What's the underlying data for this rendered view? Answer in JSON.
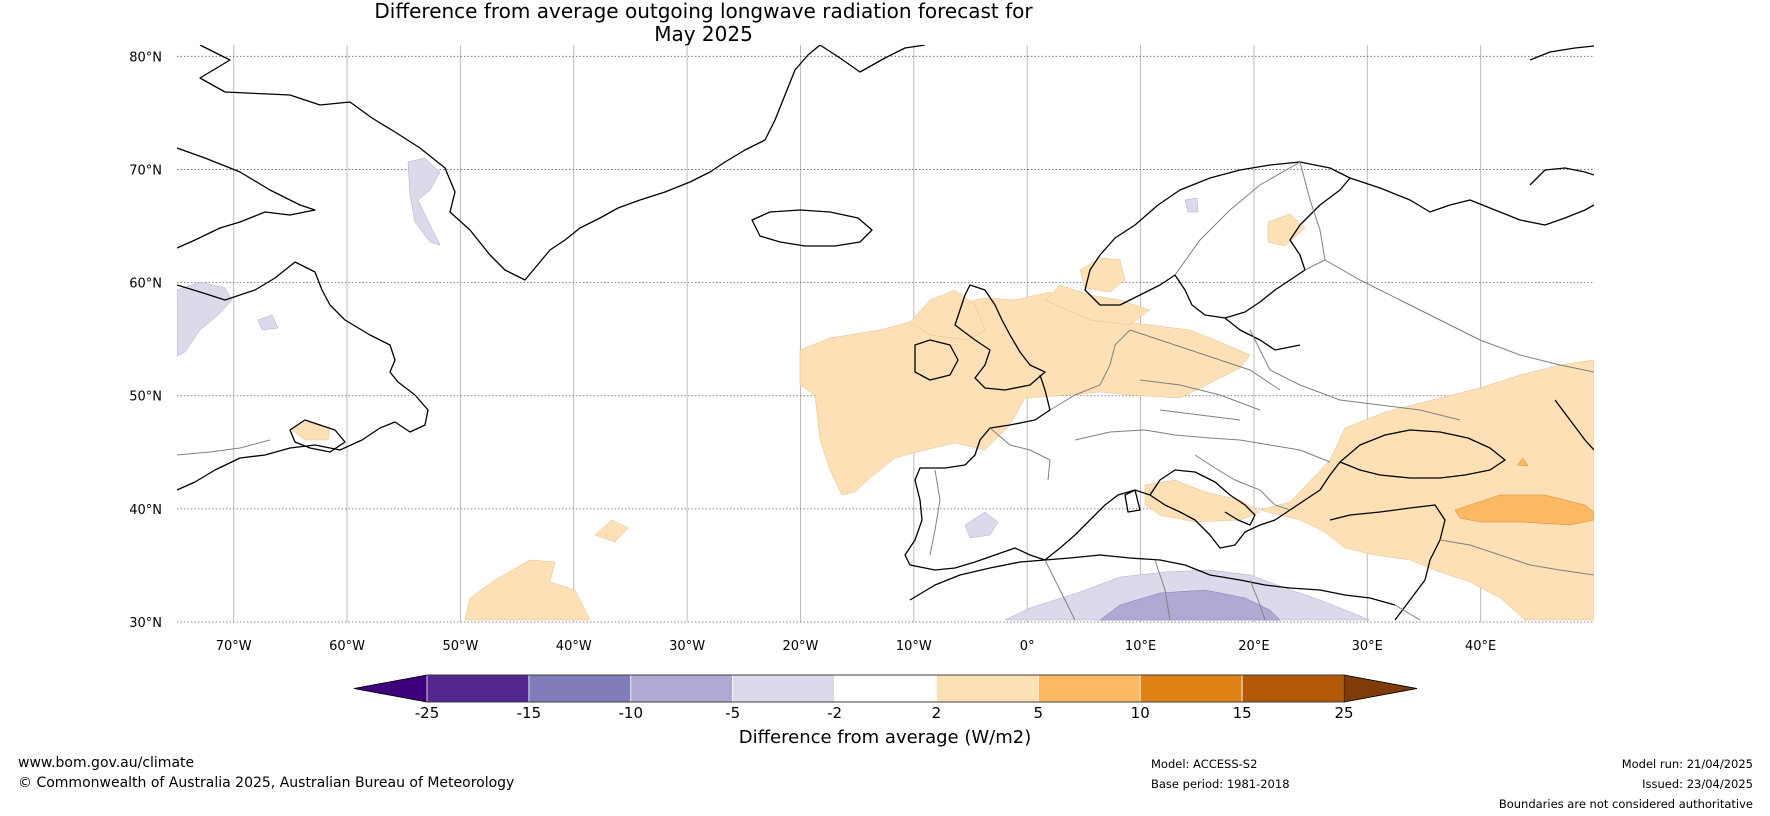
{
  "title": {
    "line1": "Difference from average outgoing longwave radiation forecast for",
    "line2": "May 2025"
  },
  "map": {
    "lon_range": [
      -75,
      50
    ],
    "lat_range": [
      30,
      81
    ],
    "lat_labels": [
      {
        "value": 80,
        "label": "80°N"
      },
      {
        "value": 70,
        "label": "70°N"
      },
      {
        "value": 60,
        "label": "60°N"
      },
      {
        "value": 50,
        "label": "50°N"
      },
      {
        "value": 40,
        "label": "40°N"
      },
      {
        "value": 30,
        "label": "30°N"
      }
    ],
    "lon_labels": [
      {
        "value": -70,
        "label": "70°W"
      },
      {
        "value": -60,
        "label": "60°W"
      },
      {
        "value": -50,
        "label": "50°W"
      },
      {
        "value": -40,
        "label": "40°W"
      },
      {
        "value": -30,
        "label": "30°W"
      },
      {
        "value": -20,
        "label": "20°W"
      },
      {
        "value": -10,
        "label": "10°W"
      },
      {
        "value": 0,
        "label": "0°"
      },
      {
        "value": 10,
        "label": "10°E"
      },
      {
        "value": 20,
        "label": "20°E"
      },
      {
        "value": 30,
        "label": "30°E"
      },
      {
        "value": 40,
        "label": "40°E"
      }
    ],
    "colors": {
      "coast": "#000000",
      "border": "#808080",
      "grid_h": "#666666",
      "grid_v": "#bbbbbb"
    }
  },
  "legend": {
    "bounds": [
      "-25",
      "-15",
      "-10",
      "-5",
      "-2",
      "2",
      "5",
      "10",
      "15",
      "25"
    ],
    "colors": [
      "#3f007d",
      "#54278f",
      "#807dba",
      "#b0a9d4",
      "#dadaeb",
      "#ffffff",
      "#fde0b5",
      "#fdb863",
      "#e08214",
      "#b35806",
      "#7f3b08"
    ],
    "label": "Difference from average (W/m2)"
  },
  "footer": {
    "website": "www.bom.gov.au/climate",
    "copyright": "© Commonwealth of Australia 2025, Australian Bureau of Meteorology",
    "model": "Model: ACCESS-S2",
    "base_period": "Base period: 1981-2018",
    "model_run": "Model run: 21/04/2025",
    "issued": "Issued: 23/04/2025",
    "disclaimer": "Boundaries are not considered authoritative"
  }
}
